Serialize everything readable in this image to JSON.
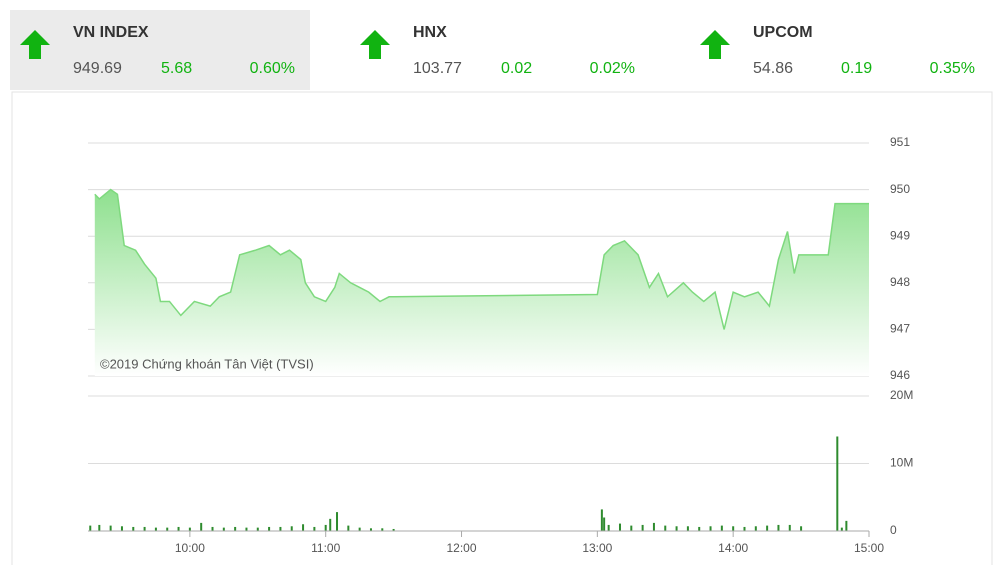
{
  "indices": [
    {
      "name": "VN INDEX",
      "value": "949.69",
      "change": "5.68",
      "percent": "0.60%"
    },
    {
      "name": "HNX",
      "value": "103.77",
      "change": "0.02",
      "percent": "0.02%"
    },
    {
      "name": "UPCOM",
      "value": "54.86",
      "change": "0.19",
      "percent": "0.35%"
    }
  ],
  "chart_data": [
    {
      "type": "area",
      "annotation": "©2019 Chứng khoán Tân Việt (TVSI)",
      "color": "#7ed97e",
      "grid": true,
      "xlim": [
        "09:15",
        "15:00"
      ],
      "ylim": [
        946,
        951
      ],
      "yticks": [
        946,
        947,
        948,
        949,
        950,
        951
      ],
      "x": [
        "09:18",
        "09:20",
        "09:25",
        "09:28",
        "09:31",
        "09:36",
        "09:40",
        "09:45",
        "09:47",
        "09:51",
        "09:56",
        "10:02",
        "10:09",
        "10:13",
        "10:18",
        "10:22",
        "10:29",
        "10:35",
        "10:40",
        "10:44",
        "10:49",
        "10:51",
        "10:55",
        "11:00",
        "11:04",
        "11:06",
        "11:11",
        "11:15",
        "11:19",
        "11:24",
        "11:28",
        "11:30",
        "13:00",
        "13:03",
        "13:07",
        "13:12",
        "13:18",
        "13:23",
        "13:27",
        "13:31",
        "13:38",
        "13:42",
        "13:47",
        "13:52",
        "13:56",
        "14:00",
        "14:05",
        "14:11",
        "14:16",
        "14:20",
        "14:24",
        "14:27",
        "14:29",
        "14:42",
        "14:45",
        "15:00"
      ],
      "values": [
        949.9,
        949.8,
        950.0,
        949.9,
        948.8,
        948.7,
        948.4,
        948.1,
        947.6,
        947.6,
        947.3,
        947.6,
        947.5,
        947.7,
        947.8,
        948.6,
        948.7,
        948.8,
        948.6,
        948.7,
        948.5,
        948.0,
        947.7,
        947.6,
        947.9,
        948.2,
        948.0,
        947.9,
        947.8,
        947.6,
        947.7,
        947.7,
        947.75,
        948.6,
        948.8,
        948.9,
        948.6,
        947.9,
        948.2,
        947.7,
        948.0,
        947.8,
        947.6,
        947.8,
        947.0,
        947.8,
        947.7,
        947.8,
        947.5,
        948.5,
        949.1,
        948.2,
        948.6,
        948.6,
        949.7,
        949.7
      ]
    },
    {
      "type": "bar",
      "color": "#2e8b2e",
      "grid": true,
      "xlim": [
        "09:15",
        "15:00"
      ],
      "ylim": [
        0,
        20000000
      ],
      "yticks": [
        0,
        {
          "value": 10000000,
          "label": "10M"
        },
        {
          "value": 20000000,
          "label": "20M"
        }
      ],
      "xticks": [
        "10:00",
        "11:00",
        "12:00",
        "13:00",
        "14:00",
        "15:00"
      ],
      "x": [
        "09:16",
        "09:20",
        "09:25",
        "09:30",
        "09:35",
        "09:40",
        "09:45",
        "09:50",
        "09:55",
        "10:00",
        "10:05",
        "10:10",
        "10:15",
        "10:20",
        "10:25",
        "10:30",
        "10:35",
        "10:40",
        "10:45",
        "10:50",
        "10:55",
        "11:00",
        "11:02",
        "11:05",
        "11:10",
        "11:15",
        "11:20",
        "11:25",
        "11:30",
        "13:02",
        "13:03",
        "13:05",
        "13:10",
        "13:15",
        "13:20",
        "13:25",
        "13:30",
        "13:35",
        "13:40",
        "13:45",
        "13:50",
        "13:55",
        "14:00",
        "14:05",
        "14:10",
        "14:15",
        "14:20",
        "14:25",
        "14:30",
        "14:46",
        "14:48",
        "14:50"
      ],
      "values": [
        800000,
        900000,
        800000,
        700000,
        600000,
        600000,
        500000,
        500000,
        600000,
        500000,
        1200000,
        600000,
        500000,
        600000,
        500000,
        500000,
        600000,
        600000,
        700000,
        1000000,
        600000,
        900000,
        1800000,
        2800000,
        800000,
        500000,
        400000,
        400000,
        300000,
        3200000,
        2000000,
        900000,
        1100000,
        800000,
        900000,
        1200000,
        800000,
        700000,
        700000,
        600000,
        700000,
        800000,
        700000,
        600000,
        700000,
        800000,
        900000,
        900000,
        700000,
        14000000,
        500000,
        1500000
      ]
    }
  ]
}
